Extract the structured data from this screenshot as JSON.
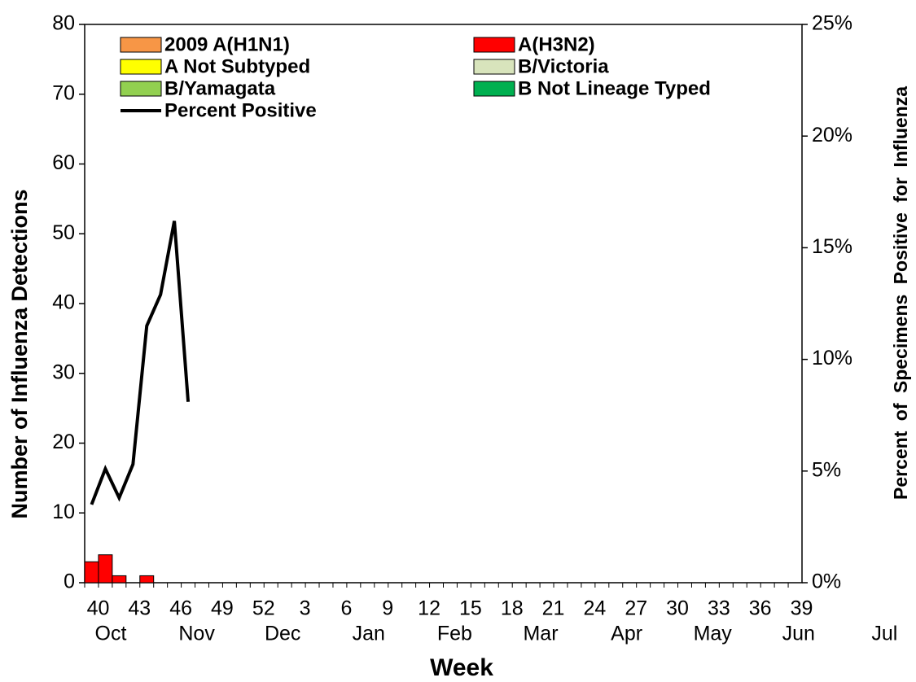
{
  "chart_data": {
    "type": "bar",
    "stacked": true,
    "xlabel": "Week",
    "ylabel": "Number of Influenza Detections",
    "y2label": "Percent of Specimens Positive for Influenza",
    "categories": [
      "40",
      null,
      null,
      "43",
      null,
      null,
      "46",
      null,
      null,
      "49",
      null,
      null,
      "52",
      null,
      null,
      "3",
      null,
      null,
      "6",
      null,
      null,
      "9",
      null,
      null,
      "12",
      null,
      null,
      "15",
      null,
      null,
      "18",
      null,
      null,
      "21",
      null,
      null,
      "24",
      null,
      null,
      "27",
      null,
      null,
      "30",
      null,
      null,
      "33",
      null,
      null,
      "36",
      null,
      null,
      "39"
    ],
    "months": [
      "Oct",
      "Nov",
      "Dec",
      "Jan",
      "Feb",
      "Mar",
      "Apr",
      "May",
      "Jun",
      "Jul"
    ],
    "ylim": [
      0,
      80
    ],
    "yticks": [
      0,
      10,
      20,
      30,
      40,
      50,
      60,
      70,
      80
    ],
    "y2lim": [
      0,
      25
    ],
    "y2ticks": [
      {
        "value": 0,
        "label": "0%"
      },
      {
        "value": 5,
        "label": "5%"
      },
      {
        "value": 10,
        "label": "10%"
      },
      {
        "value": 15,
        "label": "15%"
      },
      {
        "value": 20,
        "label": "20%"
      },
      {
        "value": 25,
        "label": "25%"
      }
    ],
    "series": [
      {
        "name": "2009 A(H1N1)",
        "color": "#f79646",
        "values": [
          0,
          0,
          0,
          0,
          0,
          0,
          0,
          0,
          null,
          null,
          null,
          null,
          null,
          null,
          null,
          null,
          null,
          null,
          null,
          null,
          null,
          null,
          null,
          null,
          null,
          null,
          null,
          null,
          null,
          null,
          null,
          null,
          null,
          null,
          null,
          null,
          null,
          null,
          null,
          null,
          null,
          null,
          null,
          null,
          null,
          null,
          null,
          null,
          null,
          null,
          null,
          null
        ]
      },
      {
        "name": "A(H3N2)",
        "color": "#ff0000",
        "values": [
          3,
          4,
          1,
          0,
          1,
          0,
          0,
          0,
          null,
          null,
          null,
          null,
          null,
          null,
          null,
          null,
          null,
          null,
          null,
          null,
          null,
          null,
          null,
          null,
          null,
          null,
          null,
          null,
          null,
          null,
          null,
          null,
          null,
          null,
          null,
          null,
          null,
          null,
          null,
          null,
          null,
          null,
          null,
          null,
          null,
          null,
          null,
          null,
          null,
          null,
          null,
          null
        ]
      },
      {
        "name": "A Not Subtyped",
        "color": "#ffff00",
        "values": [
          0,
          0,
          0,
          0,
          0,
          0,
          0,
          0,
          null,
          null,
          null,
          null,
          null,
          null,
          null,
          null,
          null,
          null,
          null,
          null,
          null,
          null,
          null,
          null,
          null,
          null,
          null,
          null,
          null,
          null,
          null,
          null,
          null,
          null,
          null,
          null,
          null,
          null,
          null,
          null,
          null,
          null,
          null,
          null,
          null,
          null,
          null,
          null,
          null,
          null,
          null,
          null
        ]
      },
      {
        "name": "B/Victoria",
        "color": "#d8e4bc",
        "values": [
          0,
          0,
          0,
          0,
          0,
          0,
          0,
          0,
          null,
          null,
          null,
          null,
          null,
          null,
          null,
          null,
          null,
          null,
          null,
          null,
          null,
          null,
          null,
          null,
          null,
          null,
          null,
          null,
          null,
          null,
          null,
          null,
          null,
          null,
          null,
          null,
          null,
          null,
          null,
          null,
          null,
          null,
          null,
          null,
          null,
          null,
          null,
          null,
          null,
          null,
          null,
          null
        ]
      },
      {
        "name": "B/Yamagata",
        "color": "#92d050",
        "values": [
          0,
          0,
          0,
          0,
          0,
          0,
          0,
          0,
          null,
          null,
          null,
          null,
          null,
          null,
          null,
          null,
          null,
          null,
          null,
          null,
          null,
          null,
          null,
          null,
          null,
          null,
          null,
          null,
          null,
          null,
          null,
          null,
          null,
          null,
          null,
          null,
          null,
          null,
          null,
          null,
          null,
          null,
          null,
          null,
          null,
          null,
          null,
          null,
          null,
          null,
          null,
          null
        ]
      },
      {
        "name": "B Not Lineage Typed",
        "color": "#00b050",
        "values": [
          0,
          0,
          0,
          0,
          0,
          0,
          0,
          0,
          null,
          null,
          null,
          null,
          null,
          null,
          null,
          null,
          null,
          null,
          null,
          null,
          null,
          null,
          null,
          null,
          null,
          null,
          null,
          null,
          null,
          null,
          null,
          null,
          null,
          null,
          null,
          null,
          null,
          null,
          null,
          null,
          null,
          null,
          null,
          null,
          null,
          null,
          null,
          null,
          null,
          null,
          null,
          null
        ]
      },
      {
        "name": "Percent Positive",
        "color": "#000000",
        "type": "line",
        "axis": "y2",
        "values": [
          3.5,
          5.1,
          3.8,
          5.3,
          11.5,
          12.9,
          16.2,
          8.1,
          null,
          null,
          null,
          null,
          null,
          null,
          null,
          null,
          null,
          null,
          null,
          null,
          null,
          null,
          null,
          null,
          null,
          null,
          null,
          null,
          null,
          null,
          null,
          null,
          null,
          null,
          null,
          null,
          null,
          null,
          null,
          null,
          null,
          null,
          null,
          null,
          null,
          null,
          null,
          null,
          null,
          null,
          null,
          null
        ]
      }
    ]
  }
}
